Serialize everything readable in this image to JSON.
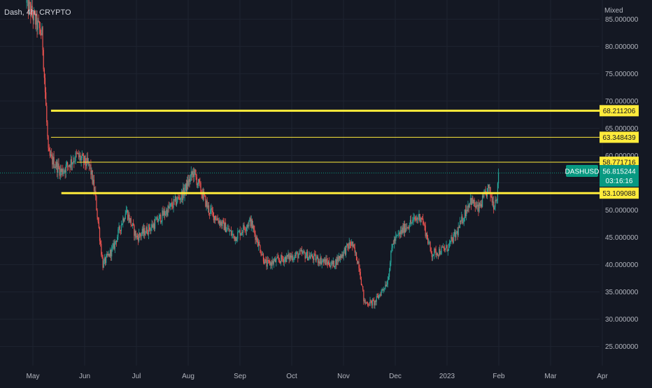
{
  "header": {
    "symbol_info": "Dash, 4h, CRYPTO",
    "scale_mode": "Mixed"
  },
  "chart_data": {
    "type": "candlestick",
    "symbol": "DASHUSD",
    "ylim": [
      21.5,
      88.5
    ],
    "y_ticks": [
      25,
      30,
      35,
      40,
      45,
      50,
      55,
      60,
      65,
      70,
      75,
      80,
      85
    ],
    "y_tick_labels": [
      "25.000000",
      "30.000000",
      "35.000000",
      "40.000000",
      "45.000000",
      "50.000000",
      "55.000000",
      "60.000000",
      "65.000000",
      "70.000000",
      "75.000000",
      "80.000000",
      "85.000000"
    ],
    "x_labels": [
      "May",
      "Jun",
      "Jul",
      "Aug",
      "Sep",
      "Oct",
      "Nov",
      "Dec",
      "2023",
      "Feb",
      "Mar",
      "Apr"
    ],
    "x_label_month_index": [
      0,
      1,
      2,
      3,
      4,
      5,
      6,
      7,
      8,
      9,
      10,
      11
    ],
    "price_path": [
      {
        "m": -0.12,
        "p": 88.0
      },
      {
        "m": 0.18,
        "p": 82.0
      },
      {
        "m": 0.3,
        "p": 60.0
      },
      {
        "m": 0.55,
        "p": 57.0
      },
      {
        "m": 0.85,
        "p": 60.0
      },
      {
        "m": 1.1,
        "p": 58.0
      },
      {
        "m": 1.2,
        "p": 53.0
      },
      {
        "m": 1.35,
        "p": 40.0
      },
      {
        "m": 1.55,
        "p": 43.0
      },
      {
        "m": 1.8,
        "p": 50.0
      },
      {
        "m": 2.0,
        "p": 45.0
      },
      {
        "m": 2.3,
        "p": 47.0
      },
      {
        "m": 2.6,
        "p": 50.0
      },
      {
        "m": 2.9,
        "p": 53.0
      },
      {
        "m": 3.1,
        "p": 57.0
      },
      {
        "m": 3.4,
        "p": 50.0
      },
      {
        "m": 3.7,
        "p": 47.0
      },
      {
        "m": 3.9,
        "p": 45.0
      },
      {
        "m": 4.2,
        "p": 48.0
      },
      {
        "m": 4.5,
        "p": 40.0
      },
      {
        "m": 4.8,
        "p": 41.0
      },
      {
        "m": 5.2,
        "p": 42.0
      },
      {
        "m": 5.5,
        "p": 41.0
      },
      {
        "m": 5.8,
        "p": 40.0
      },
      {
        "m": 6.15,
        "p": 44.0
      },
      {
        "m": 6.3,
        "p": 40.0
      },
      {
        "m": 6.4,
        "p": 33.0
      },
      {
        "m": 6.6,
        "p": 33.0
      },
      {
        "m": 6.85,
        "p": 37.0
      },
      {
        "m": 6.95,
        "p": 44.0
      },
      {
        "m": 7.2,
        "p": 47.0
      },
      {
        "m": 7.5,
        "p": 49.0
      },
      {
        "m": 7.7,
        "p": 42.0
      },
      {
        "m": 8.0,
        "p": 43.0
      },
      {
        "m": 8.2,
        "p": 46.0
      },
      {
        "m": 8.45,
        "p": 52.0
      },
      {
        "m": 8.6,
        "p": 50.0
      },
      {
        "m": 8.8,
        "p": 54.0
      },
      {
        "m": 8.9,
        "p": 51.0
      },
      {
        "m": 8.97,
        "p": 53.0
      },
      {
        "m": 9.0,
        "p": 56.8
      }
    ],
    "levels": [
      {
        "value": 68.211206,
        "label": "68.211206",
        "start_month": 0.35,
        "thick": true
      },
      {
        "value": 63.348439,
        "label": "63.348439",
        "start_month": 0.35,
        "thick": false
      },
      {
        "value": 58.771716,
        "label": "58.771716",
        "start_month": 0.85,
        "thick": false
      },
      {
        "value": 53.109088,
        "label": "53.109088",
        "start_month": 0.55,
        "thick": true
      }
    ],
    "current": {
      "symbol": "DASHUSD",
      "price": 56.815244,
      "price_label": "56.815244",
      "countdown": "03:16:16"
    },
    "colors": {
      "up": "#26a69a",
      "down": "#ef5350",
      "level": "#ffeb3b",
      "last_price": "#089981",
      "background": "#141823",
      "grid": "#1e2330",
      "axis_text": "#b2b5be"
    }
  }
}
